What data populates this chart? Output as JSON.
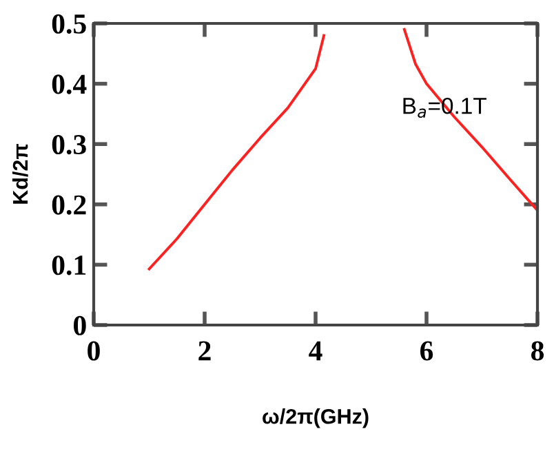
{
  "chart_data": {
    "type": "line",
    "xlabel": "ω/2π(GHz)",
    "ylabel": "Kd/2π",
    "xlim": [
      0,
      8
    ],
    "ylim": [
      0,
      0.5
    ],
    "xticks": [
      0,
      2,
      4,
      6,
      8
    ],
    "yticks": [
      0,
      0.1,
      0.2,
      0.3,
      0.4,
      0.5
    ],
    "grid": false,
    "legend": false,
    "marker": "none",
    "line_style": "solid",
    "series": [
      {
        "color": "#ff2020",
        "x": [
          1.0,
          1.5,
          2.0,
          2.5,
          3.0,
          3.5,
          4.0,
          4.15
        ],
        "values": [
          0.093,
          0.143,
          0.2,
          0.257,
          0.31,
          0.36,
          0.425,
          0.48
        ]
      },
      {
        "color": "#ff2020",
        "x": [
          5.6,
          5.8,
          6.0,
          6.5,
          7.0,
          7.5,
          8.0
        ],
        "values": [
          0.49,
          0.433,
          0.4,
          0.345,
          0.295,
          0.242,
          0.19
        ]
      }
    ],
    "annotations": [
      "B$_{a}$=0.1T"
    ]
  }
}
